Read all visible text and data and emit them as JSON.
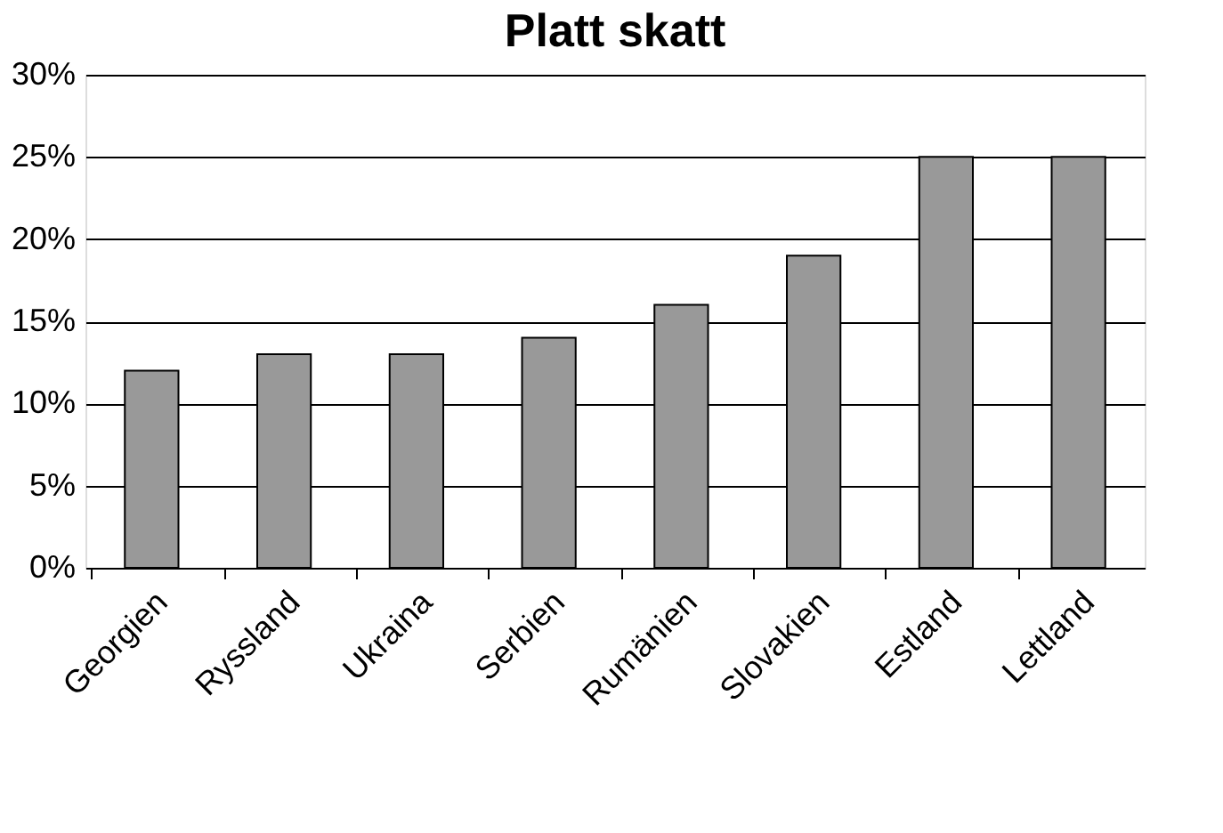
{
  "chart_data": {
    "type": "bar",
    "title": "Platt skatt",
    "categories": [
      "Georgien",
      "Ryssland",
      "Ukraina",
      "Serbien",
      "Rumänien",
      "Slovakien",
      "Estland",
      "Lettland"
    ],
    "values": [
      12,
      13,
      13,
      14,
      16,
      19,
      25,
      25
    ],
    "color": "#999999",
    "ylim": [
      0,
      30
    ],
    "yticks": [
      {
        "value": 0,
        "label": "0%"
      },
      {
        "value": 5,
        "label": "5%"
      },
      {
        "value": 10,
        "label": "10%"
      },
      {
        "value": 15,
        "label": "15%"
      },
      {
        "value": 20,
        "label": "20%"
      },
      {
        "value": 25,
        "label": "25%"
      },
      {
        "value": 30,
        "label": "30%"
      }
    ],
    "grid": "y"
  }
}
